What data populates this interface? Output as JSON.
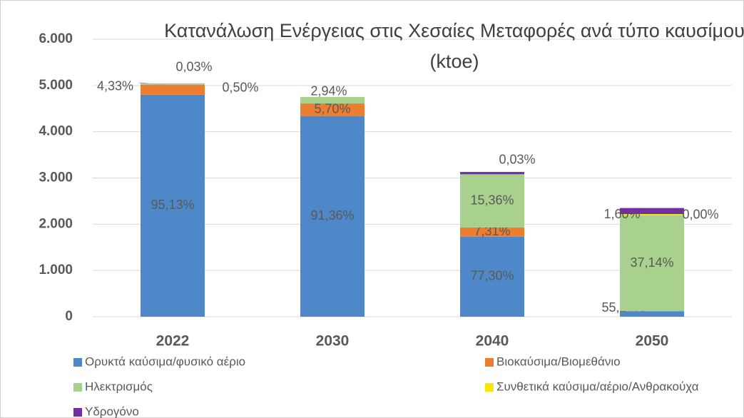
{
  "chart_data": {
    "type": "stacked_bar",
    "title": "Κατανάλωση Ενέργειας στις Χεσαίες Μεταφορές ανά τύπο καυσίμου (ktoe)",
    "categories": [
      "2022",
      "2030",
      "2040",
      "2050"
    ],
    "ylim": [
      0,
      6000
    ],
    "yticks": [
      0,
      {
        "value": 1000,
        "label": "1.000"
      },
      {
        "value": 2000,
        "label": "2.000"
      },
      {
        "value": 3000,
        "label": "3.000"
      },
      {
        "value": 4000,
        "label": "4.000"
      },
      {
        "value": 5000,
        "label": "5.000"
      },
      {
        "value": 6000,
        "label": "6.000"
      }
    ],
    "grid": true,
    "series": [
      {
        "name": "Ορυκτά καύσιμα/φυσικό αέριο",
        "color": "#4e88c9",
        "values": [
          4800,
          4340,
          1730,
          120
        ],
        "share_labels": [
          "95,13%",
          "91,36%",
          "77,30%",
          "55,27%"
        ]
      },
      {
        "name": "Βιοκαύσιμα/Βιομεθάνιο",
        "color": "#ed7d31",
        "values": [
          218,
          271,
          200,
          null
        ],
        "share_labels": [
          "4,33%",
          "5,70%",
          "7,31%",
          null
        ]
      },
      {
        "name": "Ηλεκτρισμός",
        "color": "#a9d18e",
        "values": [
          25,
          140,
          1150,
          2070
        ],
        "share_labels": [
          "0,50%",
          "2,94%",
          "15,36%",
          "37,14%"
        ]
      },
      {
        "name": "Συνθετικά καύσιμα/αέριο/Ανθρακούχα",
        "color": "#ffe600",
        "values": [
          null,
          null,
          null,
          30
        ],
        "share_labels": [
          null,
          null,
          null,
          "1,60%"
        ]
      },
      {
        "name": "Υδρογόνο",
        "color": "#7030a0",
        "values": [
          2,
          null,
          50,
          130
        ],
        "share_labels": [
          "0,03%",
          null,
          "0,03%",
          "0,00%"
        ]
      }
    ]
  }
}
